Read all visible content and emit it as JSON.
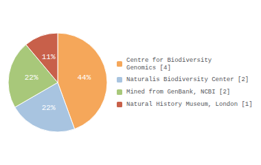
{
  "chart_data": {
    "type": "pie",
    "categories": [
      "Centre for Biodiversity\nGenomics [4]",
      "Naturalis Biodiversity Center [2]",
      "Mined from GenBank, NCBI [2]",
      "Natural History Museum, London [1]"
    ],
    "values": [
      44,
      22,
      22,
      11
    ],
    "value_labels": [
      "44%",
      "22%",
      "22%",
      "11%"
    ],
    "colors": [
      "#F5A75A",
      "#A8C4E0",
      "#A8C87A",
      "#C8604A"
    ],
    "data_labels": true,
    "legend": "right"
  }
}
